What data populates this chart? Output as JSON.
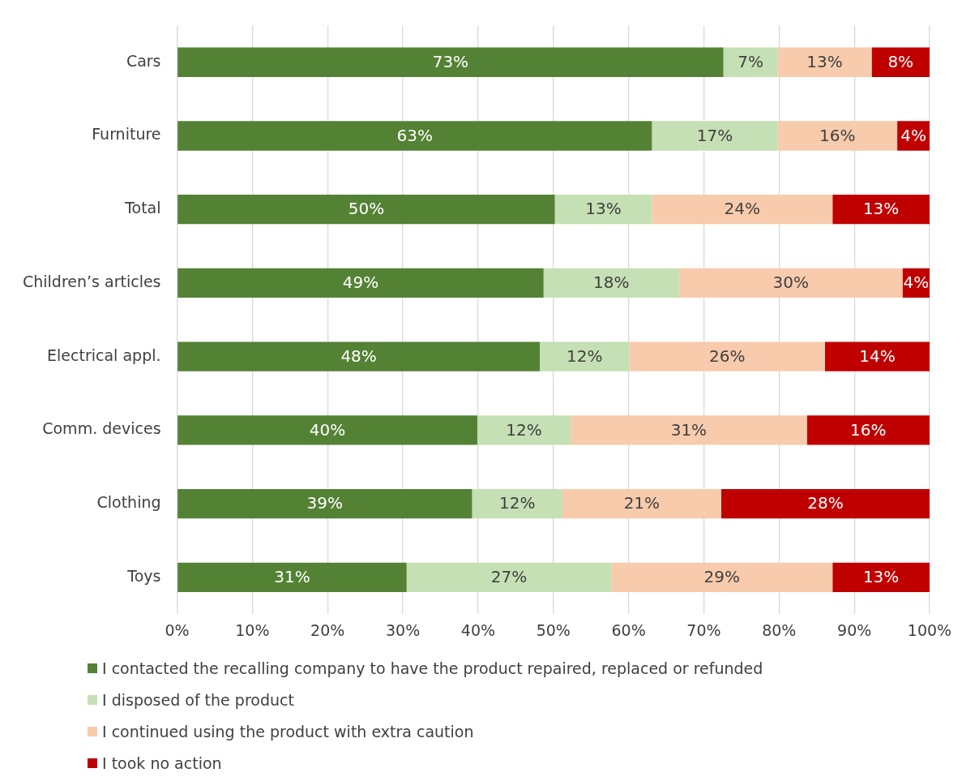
{
  "chart_data": {
    "type": "bar",
    "orientation": "horizontal",
    "stacked": true,
    "categories": [
      "Cars",
      "Furniture",
      "Total",
      "Children’s articles",
      "Electrical appl.",
      "Comm. devices",
      "Clothing",
      "Toys"
    ],
    "series": [
      {
        "name": "I contacted the recalling company to have the product repaired, replaced or refunded",
        "color": "#548235",
        "values": [
          72.6,
          63.1,
          50.2,
          48.7,
          48.2,
          39.9,
          39.2,
          30.5
        ],
        "value_labels": [
          "73%",
          "63%",
          "50%",
          "49%",
          "48%",
          "40%",
          "39%",
          "31%"
        ]
      },
      {
        "name": "I disposed of the product",
        "color": "#c5e0b4",
        "values": [
          7.2,
          16.7,
          12.9,
          18.0,
          11.9,
          12.4,
          12.0,
          27.2
        ],
        "value_labels": [
          "7%",
          "17%",
          "13%",
          "18%",
          "12%",
          "12%",
          "12%",
          "27%"
        ]
      },
      {
        "name": "I continued using the product with extra caution",
        "color": "#f8cbad",
        "values": [
          12.5,
          15.9,
          24.0,
          29.7,
          26.0,
          31.4,
          21.1,
          29.4
        ],
        "value_labels": [
          "13%",
          "16%",
          "24%",
          "30%",
          "26%",
          "31%",
          "21%",
          "29%"
        ]
      },
      {
        "name": "I took no action",
        "color": "#c00000",
        "values": [
          7.7,
          4.3,
          12.9,
          3.6,
          13.9,
          16.3,
          27.7,
          12.9
        ],
        "value_labels": [
          "8%",
          "4%",
          "13%",
          "4%",
          "14%",
          "16%",
          "28%",
          "13%"
        ]
      }
    ],
    "xlim": [
      0,
      100
    ],
    "xticks": [
      {
        "value": 0,
        "label": "0%"
      },
      {
        "value": 10,
        "label": "10%"
      },
      {
        "value": 20,
        "label": "20%"
      },
      {
        "value": 30,
        "label": "30%"
      },
      {
        "value": 40,
        "label": "40%"
      },
      {
        "value": 50,
        "label": "50%"
      },
      {
        "value": 60,
        "label": "60%"
      },
      {
        "value": 70,
        "label": "70%"
      },
      {
        "value": 80,
        "label": "80%"
      },
      {
        "value": 90,
        "label": "90%"
      },
      {
        "value": 100,
        "label": "100%"
      }
    ],
    "grid": "x",
    "legend": "bottom"
  }
}
